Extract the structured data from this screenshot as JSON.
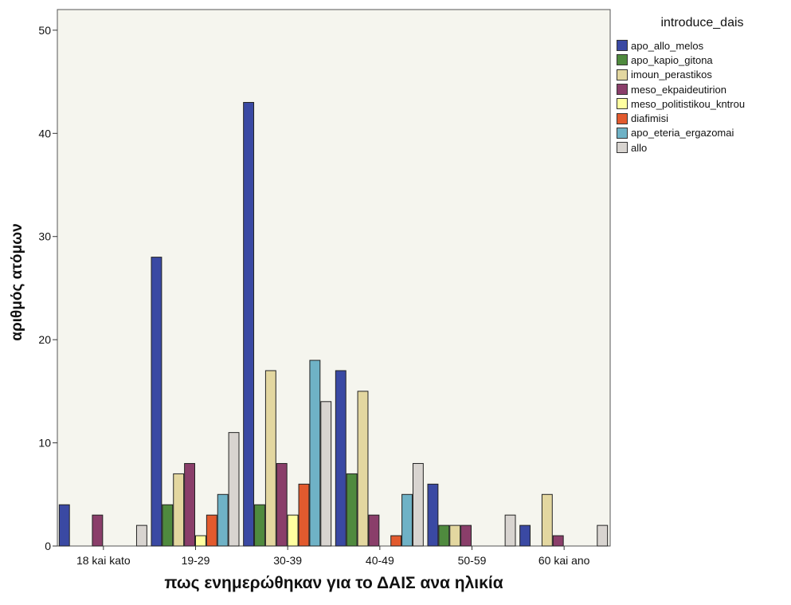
{
  "chart_data": {
    "type": "bar",
    "xlabel": "πως ενημερώθηκαν για το ΔΑΙΣ ανα ηλικία",
    "ylabel": "αριθμός ατόμων",
    "ylim": [
      0,
      52
    ],
    "yticks": [
      0,
      10,
      20,
      30,
      40,
      50
    ],
    "grid": false,
    "legend_position": "right",
    "legend_title": "introduce_dais",
    "categories": [
      "18 kai kato",
      "19-29",
      "30-39",
      "40-49",
      "50-59",
      "60 kai ano"
    ],
    "series": [
      {
        "name": "apo_allo_melos",
        "color": "#3a49a3",
        "values": [
          4,
          28,
          43,
          17,
          6,
          2
        ]
      },
      {
        "name": "apo_kapio_gitona",
        "color": "#4f8a3e",
        "values": [
          0,
          4,
          4,
          7,
          2,
          0
        ]
      },
      {
        "name": "imoun_perastikos",
        "color": "#e3d7a0",
        "values": [
          0,
          7,
          17,
          15,
          2,
          5
        ]
      },
      {
        "name": "meso_ekpaideutirion",
        "color": "#8a3e6a",
        "values": [
          3,
          8,
          8,
          3,
          2,
          1
        ]
      },
      {
        "name": "meso_politistikou_kntrou",
        "color": "#ffffa0",
        "values": [
          0,
          1,
          3,
          0,
          0,
          0
        ]
      },
      {
        "name": "diafimisi",
        "color": "#e25a2e",
        "values": [
          0,
          3,
          6,
          1,
          0,
          0
        ]
      },
      {
        "name": "apo_eteria_ergazomai",
        "color": "#6fb2c6",
        "values": [
          0,
          5,
          18,
          5,
          0,
          0
        ]
      },
      {
        "name": "allo",
        "color": "#d8d4d0",
        "values": [
          2,
          11,
          14,
          8,
          3,
          2
        ]
      }
    ]
  }
}
